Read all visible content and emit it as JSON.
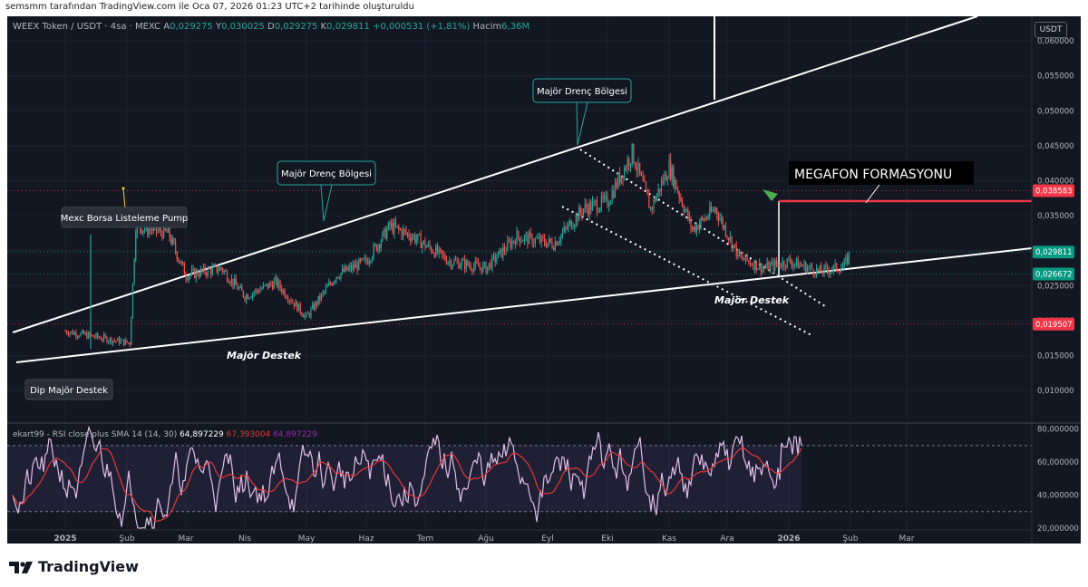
{
  "header": {
    "text": "semsmm tarafından TradingView.com ile Oca 07, 2026 01:23 UTC+2 tarihinde oluşturuldu"
  },
  "info": {
    "symbol": "WEEX Token / USDT · 4sa · MEXC",
    "o_label": "A",
    "o": "0,029275",
    "h_label": "Y",
    "h": "0,030025",
    "l_label": "D",
    "l": "0,029275",
    "c_label": "K",
    "c": "0,029811",
    "change": "+0,000531 (+1,81%)",
    "vol_label": "Hacim",
    "vol": "6,36M"
  },
  "currency_button": "USDT",
  "annotations": {
    "pump": "Mexc Borsa Listeleme Pump",
    "dip_support": "Dip Majör Destek",
    "major_support_1": "Majör Destek",
    "major_support_2": "Majör Destek",
    "resistance_1": "Majör Drenç Bölgesi",
    "resistance_2": "Majör Drenç Bölgesi",
    "megaphone": "MEGAFON FORMASYONU"
  },
  "rsi_legend": {
    "text": "ekart99 - RSI close plus SMA 14 (14, 30)",
    "value_1": "64,897229",
    "value_2": "67,393004",
    "value_3": "64,897229"
  },
  "footer": {
    "logo_text": "TradingView"
  },
  "colors": {
    "background": "#131722",
    "up": "#26a69a",
    "down": "#ef5350",
    "price_tag_green": "#089981",
    "price_tag_red": "#f23645",
    "rsi_line": "#e1bee7",
    "rsi_sma": "#e53935"
  },
  "chart_data": [
    {
      "type": "candlestick",
      "title": "",
      "x_ticks": [
        "2025",
        "Şub",
        "Mar",
        "Nis",
        "May",
        "Haz",
        "Tem",
        "Ağu",
        "Eyl",
        "Eki",
        "Kas",
        "Ara",
        "2026",
        "Şub",
        "Mar"
      ],
      "y_ticks": [
        "0,060000",
        "0,055000",
        "0,050000",
        "0,045000",
        "0,040000",
        "0,035000",
        "0,030000",
        "0,025000",
        "0,020000",
        "0,015000",
        "0,010000"
      ],
      "y_tick_values": [
        0.06,
        0.055,
        0.05,
        0.045,
        0.04,
        0.035,
        0.03,
        0.025,
        0.02,
        0.015,
        0.01
      ],
      "ylim": [
        0.0055,
        0.0635
      ],
      "grid": true,
      "price_tags": [
        {
          "value": 0.038583,
          "label": "0,038583",
          "color": "#f23645"
        },
        {
          "value": 0.029811,
          "label": "0,029811",
          "color": "#089981"
        },
        {
          "value": 0.026672,
          "label": "0,026672",
          "color": "#089981"
        },
        {
          "value": 0.019507,
          "label": "0,019507",
          "color": "#f23645"
        }
      ],
      "approx_close_path": [
        {
          "month": 0.0,
          "v": 0.0185
        },
        {
          "month": 0.6,
          "v": 0.0175
        },
        {
          "month": 1.05,
          "v": 0.0168
        },
        {
          "month": 1.15,
          "v": 0.0335
        },
        {
          "month": 1.7,
          "v": 0.0325
        },
        {
          "month": 2.0,
          "v": 0.0265
        },
        {
          "month": 2.6,
          "v": 0.0275
        },
        {
          "month": 3.0,
          "v": 0.0235
        },
        {
          "month": 3.5,
          "v": 0.0255
        },
        {
          "month": 4.0,
          "v": 0.0205
        },
        {
          "month": 4.5,
          "v": 0.0265
        },
        {
          "month": 5.0,
          "v": 0.0285
        },
        {
          "month": 5.4,
          "v": 0.0335
        },
        {
          "month": 5.8,
          "v": 0.032
        },
        {
          "month": 6.4,
          "v": 0.0285
        },
        {
          "month": 7.0,
          "v": 0.0275
        },
        {
          "month": 7.5,
          "v": 0.032
        },
        {
          "month": 8.1,
          "v": 0.031
        },
        {
          "month": 8.6,
          "v": 0.036
        },
        {
          "month": 9.0,
          "v": 0.037
        },
        {
          "month": 9.4,
          "v": 0.044
        },
        {
          "month": 9.7,
          "v": 0.036
        },
        {
          "month": 10.0,
          "v": 0.042
        },
        {
          "month": 10.4,
          "v": 0.033
        },
        {
          "month": 10.8,
          "v": 0.036
        },
        {
          "month": 11.2,
          "v": 0.029
        },
        {
          "month": 11.6,
          "v": 0.0275
        },
        {
          "month": 12.0,
          "v": 0.0285
        },
        {
          "month": 12.5,
          "v": 0.027
        },
        {
          "month": 12.9,
          "v": 0.0278
        },
        {
          "month": 13.0,
          "v": 0.0298
        }
      ]
    },
    {
      "type": "line",
      "title": "",
      "y_ticks": [
        "80,000000",
        "60,000000",
        "40,000000",
        "20,000000"
      ],
      "y_tick_values": [
        80,
        60,
        40,
        20
      ],
      "ylim": [
        20,
        82
      ],
      "band": [
        30,
        70
      ],
      "series": [
        {
          "name": "RSI",
          "last": 64.897229
        },
        {
          "name": "SMA",
          "last": 67.393004
        }
      ]
    }
  ]
}
